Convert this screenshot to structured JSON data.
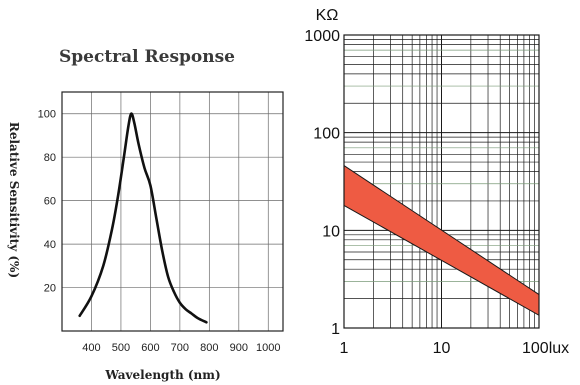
{
  "chart_data": [
    {
      "type": "line",
      "title": "Spectral Response",
      "xlabel": "Wavelength (nm)",
      "ylabel": "Relative Sensitivity (%)",
      "xlim": [
        300,
        1050
      ],
      "ylim": [
        0,
        110
      ],
      "xticks": [
        "400",
        "500",
        "600",
        "700",
        "800",
        "900",
        "1000"
      ],
      "yticks": [
        "20",
        "40",
        "60",
        "80",
        "100"
      ],
      "grid": true,
      "series": [
        {
          "x": [
            360,
            400,
            440,
            470,
            490,
            510,
            525,
            535,
            545,
            560,
            580,
            600,
            620,
            640,
            660,
            680,
            700,
            720,
            740,
            760,
            790
          ],
          "y": [
            7,
            16,
            30,
            47,
            62,
            80,
            94,
            100,
            96,
            86,
            75,
            67,
            52,
            37,
            25,
            18,
            13,
            10,
            8,
            6,
            4
          ]
        }
      ],
      "colors": {
        "line": "#111111",
        "grid": "#6b6b6b"
      }
    },
    {
      "type": "area",
      "ylabel": "KΩ",
      "x_unit_label": "lux",
      "x_scale": "log",
      "y_scale": "log",
      "xlim": [
        1,
        100
      ],
      "ylim": [
        1,
        1000
      ],
      "xticks": [
        "1",
        "10",
        "100lux"
      ],
      "yticks": [
        "1",
        "10",
        "100",
        "1000"
      ],
      "grid": true,
      "band": {
        "x": [
          1,
          100
        ],
        "upper": [
          46,
          2.2
        ],
        "lower": [
          18,
          1.35
        ]
      },
      "colors": {
        "band": "#ee5b43",
        "band_edge": "#1a1a1a",
        "grid": "#1a1a1a",
        "grid_minor_tint": "#7a9a78"
      }
    }
  ]
}
